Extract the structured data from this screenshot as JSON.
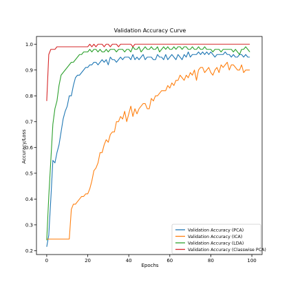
{
  "chart_data": {
    "type": "line",
    "title": "Validation Accuracy Curve",
    "xlabel": "Epochs",
    "ylabel": "Accuracy/Loss",
    "xlim": [
      -5,
      105
    ],
    "ylim": [
      0.185,
      1.03
    ],
    "xticks": [
      "0",
      "20",
      "40",
      "60",
      "80",
      "100"
    ],
    "yticks": [
      "0.2",
      "0.3",
      "0.4",
      "0.5",
      "0.6",
      "0.7",
      "0.8",
      "0.9",
      "1.0"
    ],
    "grid": false,
    "legend_position": "lower-right",
    "series": [
      {
        "name": "Validation Accuracy (PCA)",
        "color": "#1f77b4",
        "values": [
          0.215,
          0.26,
          0.4,
          0.55,
          0.54,
          0.58,
          0.61,
          0.66,
          0.71,
          0.74,
          0.76,
          0.8,
          0.8,
          0.84,
          0.87,
          0.88,
          0.88,
          0.89,
          0.9,
          0.91,
          0.91,
          0.92,
          0.92,
          0.93,
          0.93,
          0.92,
          0.93,
          0.94,
          0.93,
          0.94,
          0.92,
          0.95,
          0.94,
          0.94,
          0.93,
          0.94,
          0.95,
          0.94,
          0.95,
          0.95,
          0.95,
          0.94,
          0.96,
          0.94,
          0.95,
          0.94,
          0.95,
          0.96,
          0.94,
          0.95,
          0.95,
          0.95,
          0.94,
          0.94,
          0.96,
          0.95,
          0.95,
          0.94,
          0.96,
          0.94,
          0.95,
          0.96,
          0.95,
          0.94,
          0.96,
          0.95,
          0.94,
          0.96,
          0.95,
          0.97,
          0.95,
          0.96,
          0.96,
          0.96,
          0.97,
          0.96,
          0.97,
          0.96,
          0.97,
          0.96,
          0.97,
          0.96,
          0.95,
          0.96,
          0.96,
          0.96,
          0.96,
          0.97,
          0.96,
          0.96,
          0.95,
          0.96,
          0.95,
          0.95,
          0.96,
          0.96,
          0.95,
          0.96,
          0.95,
          0.95
        ]
      },
      {
        "name": "Validation Accuracy (ICA)",
        "color": "#ff7f0e",
        "values": [
          0.245,
          0.245,
          0.245,
          0.245,
          0.245,
          0.245,
          0.245,
          0.245,
          0.245,
          0.245,
          0.245,
          0.245,
          0.36,
          0.38,
          0.38,
          0.39,
          0.4,
          0.41,
          0.41,
          0.42,
          0.42,
          0.44,
          0.47,
          0.51,
          0.52,
          0.54,
          0.58,
          0.58,
          0.61,
          0.63,
          0.62,
          0.65,
          0.66,
          0.66,
          0.7,
          0.7,
          0.72,
          0.71,
          0.74,
          0.7,
          0.73,
          0.76,
          0.72,
          0.75,
          0.73,
          0.75,
          0.76,
          0.77,
          0.77,
          0.75,
          0.75,
          0.79,
          0.78,
          0.8,
          0.8,
          0.81,
          0.82,
          0.82,
          0.82,
          0.84,
          0.83,
          0.85,
          0.84,
          0.86,
          0.86,
          0.88,
          0.87,
          0.86,
          0.88,
          0.87,
          0.89,
          0.88,
          0.9,
          0.86,
          0.9,
          0.91,
          0.91,
          0.89,
          0.9,
          0.91,
          0.89,
          0.88,
          0.9,
          0.91,
          0.89,
          0.92,
          0.91,
          0.92,
          0.93,
          0.9,
          0.92,
          0.92,
          0.91,
          0.9,
          0.9,
          0.92,
          0.89,
          0.9,
          0.9,
          0.9
        ]
      },
      {
        "name": "Validation Accuracy (LDA)",
        "color": "#2ca02c",
        "values": [
          0.24,
          0.41,
          0.55,
          0.69,
          0.75,
          0.78,
          0.84,
          0.88,
          0.89,
          0.9,
          0.91,
          0.92,
          0.93,
          0.93,
          0.94,
          0.95,
          0.96,
          0.96,
          0.97,
          0.97,
          0.97,
          0.98,
          0.97,
          0.98,
          0.98,
          0.97,
          0.98,
          0.97,
          0.97,
          0.98,
          0.97,
          0.98,
          0.98,
          0.98,
          0.97,
          0.98,
          0.98,
          0.98,
          0.97,
          0.98,
          0.98,
          0.97,
          0.99,
          0.98,
          0.98,
          0.99,
          0.97,
          0.98,
          0.99,
          0.98,
          0.98,
          0.99,
          0.98,
          0.98,
          0.99,
          0.97,
          0.98,
          0.99,
          0.98,
          0.99,
          0.98,
          0.98,
          0.99,
          0.98,
          0.99,
          0.99,
          0.98,
          0.99,
          0.99,
          0.98,
          0.98,
          0.99,
          0.98,
          0.98,
          0.99,
          0.98,
          0.98,
          0.99,
          0.98,
          0.98,
          0.98,
          0.97,
          0.98,
          0.98,
          0.98,
          0.97,
          0.98,
          0.98,
          0.98,
          0.98,
          0.98,
          0.97,
          0.98,
          0.97,
          0.96,
          0.98,
          0.98,
          0.99,
          0.98,
          0.97
        ]
      },
      {
        "name": "Validation Accuracy (Classwise PCA)",
        "color": "#d62728",
        "values": [
          0.78,
          0.96,
          0.98,
          0.98,
          0.98,
          0.99,
          0.99,
          0.99,
          0.99,
          0.99,
          0.99,
          0.99,
          0.99,
          0.99,
          0.99,
          0.99,
          0.99,
          0.99,
          0.99,
          0.99,
          0.99,
          1.0,
          0.99,
          1.0,
          0.99,
          1.0,
          1.0,
          1.0,
          0.99,
          1.0,
          1.0,
          0.99,
          1.0,
          1.0,
          1.0,
          0.99,
          1.0,
          1.0,
          1.0,
          1.0,
          1.0,
          1.0,
          0.99,
          1.0,
          1.0,
          1.0,
          1.0,
          1.0,
          1.0,
          1.0,
          1.0,
          1.0,
          1.0,
          1.0,
          1.0,
          1.0,
          1.0,
          1.0,
          1.0,
          1.0,
          1.0,
          1.0,
          1.0,
          1.0,
          1.0,
          1.0,
          1.0,
          1.0,
          1.0,
          1.0,
          1.0,
          1.0,
          1.0,
          1.0,
          1.0,
          1.0,
          1.0,
          1.0,
          1.0,
          1.0,
          1.0,
          1.0,
          1.0,
          1.0,
          1.0,
          1.0,
          1.0,
          1.0,
          1.0,
          1.0,
          1.0,
          1.0,
          1.0,
          1.0,
          1.0,
          1.0,
          1.0,
          1.0,
          1.0,
          1.0
        ]
      }
    ]
  }
}
